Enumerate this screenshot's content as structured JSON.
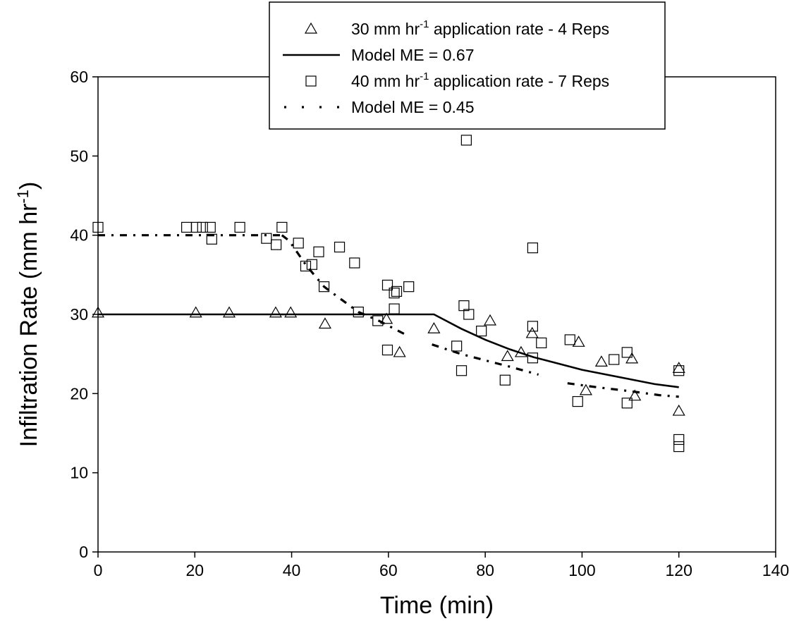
{
  "chart_data": {
    "type": "scatter",
    "xlabel": "Time (min)",
    "ylabel": {
      "main": "Infiltration Rate (mm hr",
      "sup": "-1",
      "end": ")"
    },
    "xlim": [
      0,
      140
    ],
    "ylim": [
      0,
      60
    ],
    "x_ticks": [
      0,
      20,
      40,
      60,
      80,
      100,
      120,
      140
    ],
    "y_ticks": [
      0,
      10,
      20,
      30,
      40,
      50,
      60
    ],
    "grid": false,
    "legend_position": "top-center",
    "legend": [
      {
        "marker": "triangle",
        "pre": "30 mm hr",
        "sup": "-1",
        "post": " application rate - 4 Reps"
      },
      {
        "marker": "solid-line",
        "pre": "Model ME = 0.67",
        "sup": "",
        "post": ""
      },
      {
        "marker": "square",
        "pre": "40 mm hr",
        "sup": "-1",
        "post": " application rate - 7 Reps"
      },
      {
        "marker": "dotted-line",
        "pre": "Model ME = 0.45",
        "sup": "",
        "post": ""
      }
    ],
    "series": [
      {
        "type": "scatter",
        "marker": "triangle",
        "points": [
          [
            0,
            30.2
          ],
          [
            20.2,
            30.2
          ],
          [
            27.1,
            30.2
          ],
          [
            36.7,
            30.2
          ],
          [
            39.8,
            30.2
          ],
          [
            46.9,
            28.8
          ],
          [
            59.6,
            29.4
          ],
          [
            62.3,
            25.2
          ],
          [
            69.4,
            28.2
          ],
          [
            81,
            29.2
          ],
          [
            84.6,
            24.7
          ],
          [
            87.4,
            25.2
          ],
          [
            89.7,
            27.6
          ],
          [
            99.3,
            26.5
          ],
          [
            100.8,
            20.4
          ],
          [
            104,
            24
          ],
          [
            110.3,
            24.4
          ],
          [
            110.9,
            19.7
          ],
          [
            120,
            17.8
          ],
          [
            120,
            23.2
          ]
        ]
      },
      {
        "type": "scatter",
        "marker": "square",
        "points": [
          [
            0,
            41
          ],
          [
            18.3,
            41
          ],
          [
            20.3,
            41
          ],
          [
            21.6,
            41
          ],
          [
            23.2,
            41
          ],
          [
            23.5,
            39.5
          ],
          [
            29.3,
            41
          ],
          [
            34.8,
            39.6
          ],
          [
            36.8,
            38.8
          ],
          [
            38,
            41
          ],
          [
            41.4,
            39
          ],
          [
            42.9,
            36.1
          ],
          [
            44.2,
            36.3
          ],
          [
            45.6,
            37.9
          ],
          [
            46.7,
            33.5
          ],
          [
            49.9,
            38.5
          ],
          [
            53,
            36.5
          ],
          [
            53.8,
            30.3
          ],
          [
            57.8,
            29.2
          ],
          [
            59.8,
            33.7
          ],
          [
            59.8,
            25.5
          ],
          [
            61.2,
            32.7
          ],
          [
            61.2,
            30.7
          ],
          [
            61.7,
            32.9
          ],
          [
            64.2,
            33.5
          ],
          [
            74.1,
            26
          ],
          [
            75.1,
            22.9
          ],
          [
            75.6,
            31.1
          ],
          [
            76.1,
            52
          ],
          [
            76.6,
            30
          ],
          [
            79.2,
            27.9
          ],
          [
            84.1,
            21.7
          ],
          [
            89.8,
            38.4
          ],
          [
            89.8,
            28.5
          ],
          [
            89.8,
            24.5
          ],
          [
            91.6,
            26.4
          ],
          [
            97.5,
            26.8
          ],
          [
            99.1,
            19
          ],
          [
            106.6,
            24.3
          ],
          [
            109.3,
            25.2
          ],
          [
            109.3,
            18.8
          ],
          [
            120,
            22.9
          ],
          [
            120,
            14.2
          ],
          [
            120,
            13.3
          ]
        ]
      },
      {
        "type": "line",
        "style": "solid",
        "name": "Model ME = 0.67",
        "points": [
          [
            0,
            30
          ],
          [
            69.4,
            30
          ],
          [
            75,
            28.2
          ],
          [
            80,
            26.8
          ],
          [
            85,
            25.6
          ],
          [
            90,
            24.6
          ],
          [
            95,
            23.8
          ],
          [
            100,
            23
          ],
          [
            105,
            22.4
          ],
          [
            110,
            21.8
          ],
          [
            115,
            21.2
          ],
          [
            120,
            20.8
          ]
        ]
      },
      {
        "type": "line",
        "style": "dotted",
        "name": "Model ME = 0.45",
        "segments": [
          [
            [
              0,
              40
            ],
            [
              18,
              40
            ],
            [
              38,
              40
            ]
          ],
          [
            [
              38,
              40
            ],
            [
              39.5,
              39.3
            ],
            [
              43,
              36.2
            ],
            [
              46.7,
              33.5
            ],
            [
              50,
              32
            ],
            [
              53.8,
              30.3
            ],
            [
              58,
              29.2
            ],
            [
              64,
              27.3
            ]
          ],
          [
            [
              69,
              26.2
            ],
            [
              75,
              25
            ],
            [
              80,
              24.2
            ],
            [
              85,
              23.4
            ],
            [
              91,
              22.4
            ]
          ],
          [
            [
              97,
              21.3
            ],
            [
              103,
              20.8
            ],
            [
              110,
              20.3
            ],
            [
              116,
              19.8
            ],
            [
              120,
              19.6
            ]
          ]
        ]
      }
    ]
  }
}
